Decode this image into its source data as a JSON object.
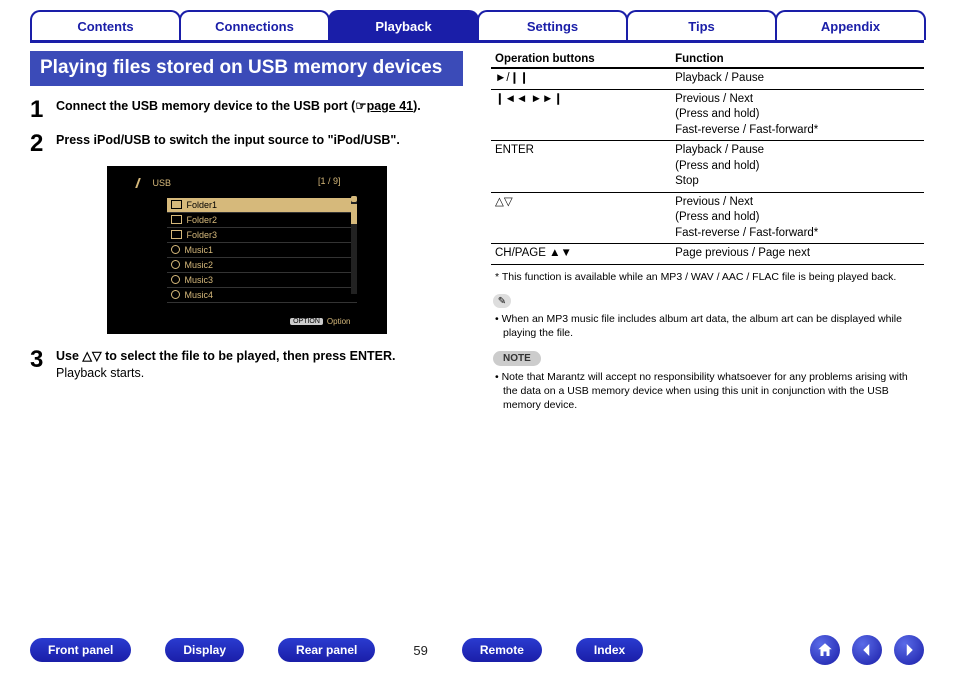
{
  "colors": {
    "primary": "#1a1ea8",
    "header_fill": "#3b4bb8",
    "screenshot_bg": "#000000",
    "screenshot_fg": "#d6b97b"
  },
  "tabs": [
    {
      "label": "Contents",
      "active": false
    },
    {
      "label": "Connections",
      "active": false
    },
    {
      "label": "Playback",
      "active": true
    },
    {
      "label": "Settings",
      "active": false
    },
    {
      "label": "Tips",
      "active": false
    },
    {
      "label": "Appendix",
      "active": false
    }
  ],
  "section_title": "Playing files stored on USB memory devices",
  "steps": {
    "s1_num": "1",
    "s1_text_a": "Connect the USB memory device to the USB port (",
    "s1_link_icon": "☞",
    "s1_link": "page 41",
    "s1_text_b": ").",
    "s2_num": "2",
    "s2_text": "Press iPod/USB to switch the input source to \"iPod/USB\".",
    "s3_num": "3",
    "s3_text_a": "Use △▽ to select the file to be played, then press ENTER.",
    "s3_text_b": "Playback starts."
  },
  "screenshot": {
    "title": "USB",
    "count": "[1 / 9]",
    "items": [
      {
        "type": "folder",
        "label": "Folder1",
        "selected": true
      },
      {
        "type": "folder",
        "label": "Folder2",
        "selected": false
      },
      {
        "type": "folder",
        "label": "Folder3",
        "selected": false
      },
      {
        "type": "music",
        "label": "Music1",
        "selected": false
      },
      {
        "type": "music",
        "label": "Music2",
        "selected": false
      },
      {
        "type": "music",
        "label": "Music3",
        "selected": false
      },
      {
        "type": "music",
        "label": "Music4",
        "selected": false
      }
    ],
    "option_badge": "OPTION",
    "option_label": "Option"
  },
  "ops_table": {
    "head1": "Operation buttons",
    "head2": "Function",
    "rows": [
      {
        "op": "►/❙❙",
        "fn": "Playback / Pause"
      },
      {
        "op": "❙◄◄  ►►❙",
        "fn": "Previous / Next\n(Press and hold)\nFast-reverse / Fast-forward*"
      },
      {
        "op": "ENTER",
        "fn": "Playback / Pause\n(Press and hold)\nStop"
      },
      {
        "op": "△▽",
        "fn": "Previous / Next\n(Press and hold)\nFast-reverse / Fast-forward*"
      },
      {
        "op": "CH/PAGE ▲▼",
        "fn": "Page previous / Page next"
      }
    ]
  },
  "asterisk_note": "* This function is available while an MP3 / WAV / AAC / FLAC file is being played back.",
  "pencil_icon": "✎",
  "info_bullet": "• When an MP3 music file includes album art data, the album art can be displayed while playing the file.",
  "note_label": "NOTE",
  "note_bullet": "• Note that Marantz will accept no responsibility whatsoever for any problems arising with the data on a USB memory device when using this unit in conjunction with the USB memory device.",
  "bottom": {
    "pills": [
      "Front panel",
      "Display",
      "Rear panel"
    ],
    "page": "59",
    "pills2": [
      "Remote",
      "Index"
    ]
  }
}
